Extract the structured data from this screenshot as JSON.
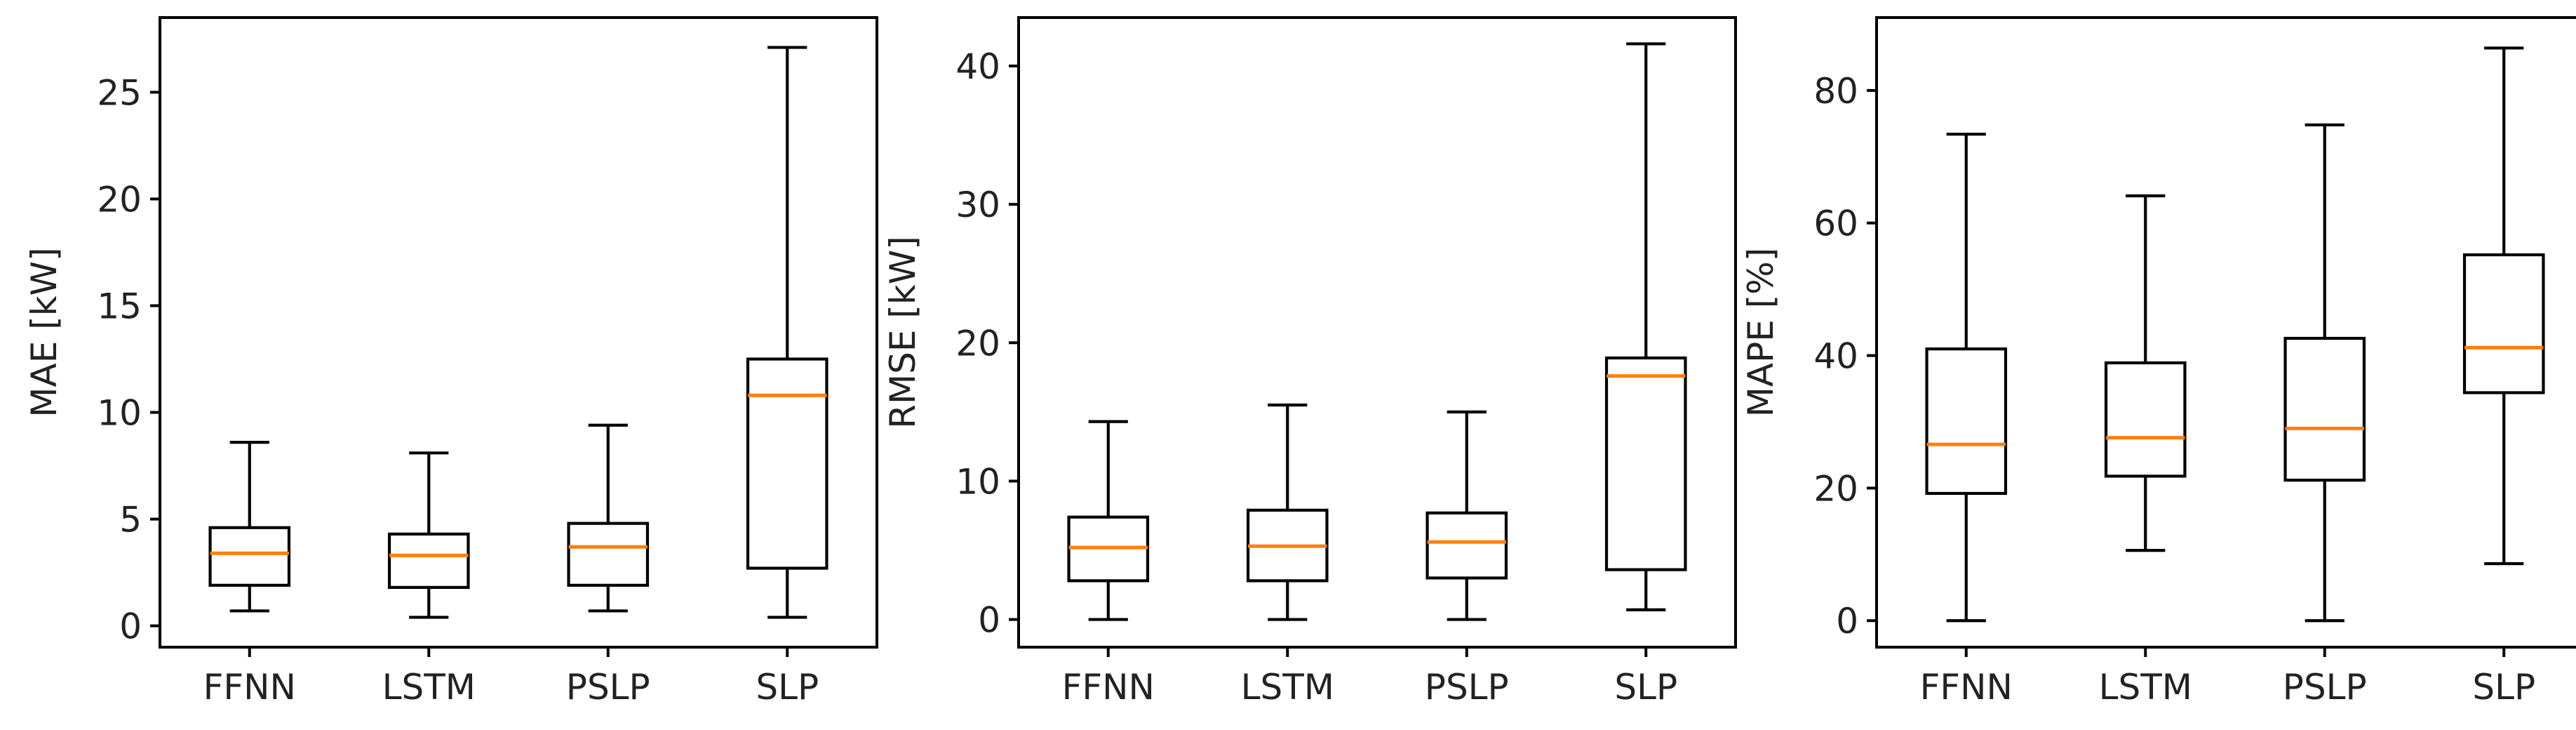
{
  "figure": {
    "colors": {
      "box": "#000000",
      "median": "#ff7f0e",
      "background": "#ffffff"
    }
  },
  "chart_data": [
    {
      "type": "box",
      "title": "",
      "xlabel": "",
      "ylabel": "MAE [kW]",
      "ylim": [
        -1.0,
        28.5
      ],
      "yticks": [
        0,
        5,
        10,
        15,
        20,
        25
      ],
      "ytick_labels": [
        "0",
        "5",
        "10",
        "15",
        "20",
        "25"
      ],
      "categories": [
        "FFNN",
        "LSTM",
        "PSLP",
        "SLP"
      ],
      "boxes": [
        {
          "name": "FFNN",
          "whislo": 0.7,
          "q1": 1.9,
          "med": 3.4,
          "q3": 4.6,
          "whishi": 8.6
        },
        {
          "name": "LSTM",
          "whislo": 0.4,
          "q1": 1.8,
          "med": 3.3,
          "q3": 4.3,
          "whishi": 8.1
        },
        {
          "name": "PSLP",
          "whislo": 0.7,
          "q1": 1.9,
          "med": 3.7,
          "q3": 4.8,
          "whishi": 9.4
        },
        {
          "name": "SLP",
          "whislo": 0.4,
          "q1": 2.7,
          "med": 10.8,
          "q3": 12.5,
          "whishi": 27.1
        }
      ]
    },
    {
      "type": "box",
      "title": "",
      "xlabel": "",
      "ylabel": "RMSE [kW]",
      "ylim": [
        -2.0,
        43.5
      ],
      "yticks": [
        0,
        10,
        20,
        30,
        40
      ],
      "ytick_labels": [
        "0",
        "10",
        "20",
        "30",
        "40"
      ],
      "categories": [
        "FFNN",
        "LSTM",
        "PSLP",
        "SLP"
      ],
      "boxes": [
        {
          "name": "FFNN",
          "whislo": 0.0,
          "q1": 2.8,
          "med": 5.2,
          "q3": 7.4,
          "whishi": 14.3
        },
        {
          "name": "LSTM",
          "whislo": 0.0,
          "q1": 2.8,
          "med": 5.3,
          "q3": 7.9,
          "whishi": 15.5
        },
        {
          "name": "PSLP",
          "whislo": 0.0,
          "q1": 3.0,
          "med": 5.6,
          "q3": 7.7,
          "whishi": 15.0
        },
        {
          "name": "SLP",
          "whislo": 0.7,
          "q1": 3.6,
          "med": 17.6,
          "q3": 18.9,
          "whishi": 41.6
        }
      ]
    },
    {
      "type": "box",
      "title": "",
      "xlabel": "",
      "ylabel": "MAPE [%]",
      "ylim": [
        -4.0,
        91.0
      ],
      "yticks": [
        0,
        20,
        40,
        60,
        80
      ],
      "ytick_labels": [
        "0",
        "20",
        "40",
        "60",
        "80"
      ],
      "categories": [
        "FFNN",
        "LSTM",
        "PSLP",
        "SLP"
      ],
      "boxes": [
        {
          "name": "FFNN",
          "whislo": 0.0,
          "q1": 19.2,
          "med": 26.6,
          "q3": 41.0,
          "whishi": 73.4
        },
        {
          "name": "LSTM",
          "whislo": 10.6,
          "q1": 21.8,
          "med": 27.6,
          "q3": 38.9,
          "whishi": 64.1
        },
        {
          "name": "PSLP",
          "whislo": 0.0,
          "q1": 21.2,
          "med": 29.0,
          "q3": 42.6,
          "whishi": 74.8
        },
        {
          "name": "SLP",
          "whislo": 8.6,
          "q1": 34.4,
          "med": 41.2,
          "q3": 55.2,
          "whishi": 86.4
        }
      ]
    }
  ]
}
